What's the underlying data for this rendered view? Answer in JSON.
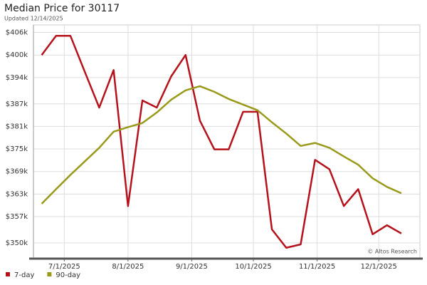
{
  "chart_data": {
    "type": "line",
    "title": "Median Price for 30117",
    "subtitle": "Updated 12/14/2025",
    "annotation": "© Altos Research",
    "x": [
      "2025-06-20",
      "2025-06-27",
      "2025-07-04",
      "2025-07-11",
      "2025-07-18",
      "2025-07-25",
      "2025-08-01",
      "2025-08-08",
      "2025-08-15",
      "2025-08-22",
      "2025-08-29",
      "2025-09-05",
      "2025-09-12",
      "2025-09-19",
      "2025-09-26",
      "2025-10-03",
      "2025-10-10",
      "2025-10-17",
      "2025-10-24",
      "2025-10-31",
      "2025-11-07",
      "2025-11-14",
      "2025-11-21",
      "2025-11-28",
      "2025-12-05",
      "2025-12-12"
    ],
    "series": [
      {
        "name": "7-day",
        "color": "#b5121b",
        "values": [
          400000,
          405100,
          405100,
          395500,
          386000,
          396000,
          359800,
          387900,
          386000,
          394300,
          400000,
          382500,
          374900,
          374900,
          384900,
          384900,
          353600,
          348700,
          349600,
          372100,
          369600,
          359800,
          364300,
          352300,
          354700,
          352500
        ]
      },
      {
        "name": "90-day",
        "color": "#9a9a1a",
        "values": [
          360400,
          364300,
          368100,
          371700,
          375300,
          379600,
          380800,
          381900,
          384700,
          388100,
          390600,
          391700,
          390200,
          388300,
          386800,
          385300,
          382100,
          379100,
          375800,
          376600,
          375300,
          373000,
          370800,
          367200,
          364900,
          363200
        ]
      }
    ],
    "xlim": [
      "2025-06-16",
      "2025-12-21"
    ],
    "xticks": [
      {
        "value": "2025-07-01",
        "label": "7/1/2025"
      },
      {
        "value": "2025-08-01",
        "label": "8/1/2025"
      },
      {
        "value": "2025-09-01",
        "label": "9/1/2025"
      },
      {
        "value": "2025-10-01",
        "label": "10/1/2025"
      },
      {
        "value": "2025-11-01",
        "label": "11/1/2025"
      },
      {
        "value": "2025-12-01",
        "label": "12/1/2025"
      }
    ],
    "ylim": [
      346000,
      408000
    ],
    "yticks": [
      {
        "value": 350000,
        "label": "$350k"
      },
      {
        "value": 357000,
        "label": "$357k"
      },
      {
        "value": 363000,
        "label": "$363k"
      },
      {
        "value": 369000,
        "label": "$369k"
      },
      {
        "value": 375000,
        "label": "$375k"
      },
      {
        "value": 381000,
        "label": "$381k"
      },
      {
        "value": 387000,
        "label": "$387k"
      },
      {
        "value": 394000,
        "label": "$394k"
      },
      {
        "value": 400000,
        "label": "$400k"
      },
      {
        "value": 406000,
        "label": "$406k"
      }
    ],
    "grid": true,
    "legend": "bottom-left"
  }
}
